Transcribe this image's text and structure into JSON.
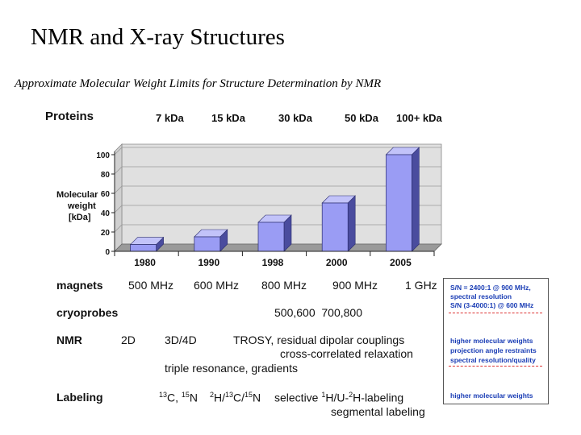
{
  "title": "NMR and X-ray Structures",
  "subtitle": "Approximate Molecular Weight Limits for Structure Determination by NMR",
  "proteins_header": {
    "label": "Proteins",
    "sizes": [
      "7 kDa",
      "15 kDa",
      "30 kDa",
      "50 kDa",
      "100+ kDa"
    ]
  },
  "chart_data": {
    "type": "bar",
    "categories": [
      "1980",
      "1990",
      "1998",
      "2000",
      "2005"
    ],
    "values": [
      7,
      15,
      30,
      50,
      100
    ],
    "ylabel": "Molecular weight [kDa]",
    "ylabel_lines": [
      "Molecular",
      "weight",
      "[kDa]"
    ],
    "ylim": [
      0,
      100
    ],
    "yticks": [
      "0",
      "20",
      "40",
      "60",
      "80",
      "100"
    ],
    "grid": true,
    "bar_color": "#9a9cf4"
  },
  "rows": {
    "magnets": {
      "label": "magnets",
      "values": [
        "500 MHz",
        "600 MHz",
        "800 MHz",
        "900 MHz",
        "1 GHz"
      ]
    },
    "cryoprobes": {
      "label": "cryoprobes",
      "value": "500,600  700,800"
    },
    "nmr": {
      "label": "NMR",
      "items": [
        "2D",
        "3D/4D",
        "TROSY, residual dipolar couplings",
        "cross-correlated relaxation",
        "triple resonance, gradients"
      ]
    },
    "labeling": {
      "label": "Labeling",
      "item1_sup": "13",
      "item1_mid": "C, ",
      "item1_sup2": "15",
      "item1_end": "N",
      "item2_sup": "2",
      "item2_mid": "H/",
      "item2_sup2": "13",
      "item2_mid2": "C/",
      "item2_sup3": "15",
      "item2_end": "N",
      "item3_pre": "selective ",
      "item3_sup": "1",
      "item3_mid": "H/U-",
      "item3_sup2": "2",
      "item3_end": "H-labeling",
      "item4": "segmental labeling"
    }
  },
  "side_notes": {
    "line1": "S/N = 2400:1 @ 900 MHz,",
    "line2": "spectral resolution",
    "line3": "S/N  (3-4000:1) @ 600 MHz",
    "line4": "higher molecular weights",
    "line5": "projection angle restraints",
    "line6": "spectral resolution/quality",
    "line7": "higher molecular weights",
    "text_color": "#1a3db5"
  }
}
